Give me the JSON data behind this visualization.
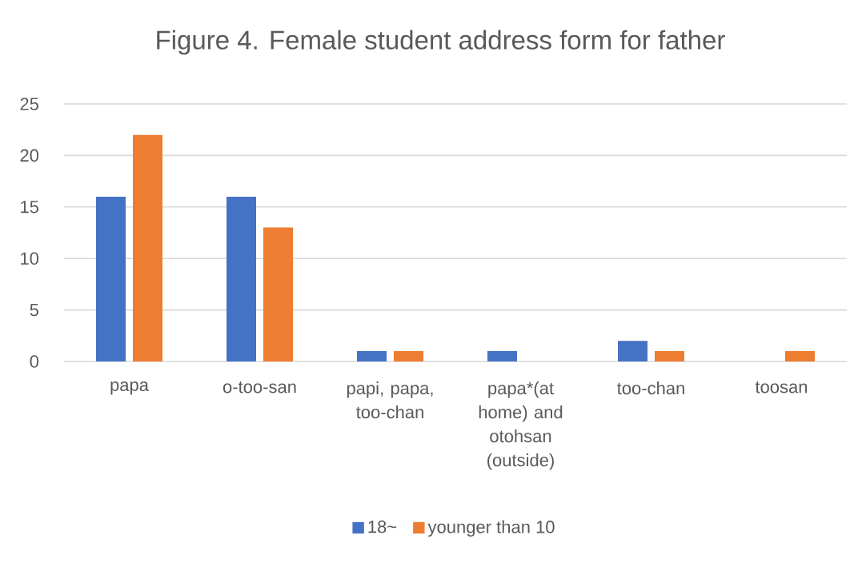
{
  "chart_data": {
    "type": "bar",
    "title": "Figure 4. Female student address form for father",
    "categories": [
      "papa",
      "o-too-san",
      "papi, papa, too-chan",
      "papa*(at home) and otohsan (outside)",
      "too-chan",
      "toosan"
    ],
    "series": [
      {
        "name": "18~",
        "color": "#4472c4",
        "values": [
          16,
          16,
          1,
          1,
          2,
          null
        ]
      },
      {
        "name": "younger than 10",
        "color": "#ed7d31",
        "values": [
          22,
          13,
          1,
          null,
          1,
          1
        ]
      }
    ],
    "ylim": [
      0,
      25
    ],
    "yticks": [
      0,
      5,
      10,
      15,
      20,
      25
    ],
    "grid": "y",
    "legend": "bottom"
  }
}
